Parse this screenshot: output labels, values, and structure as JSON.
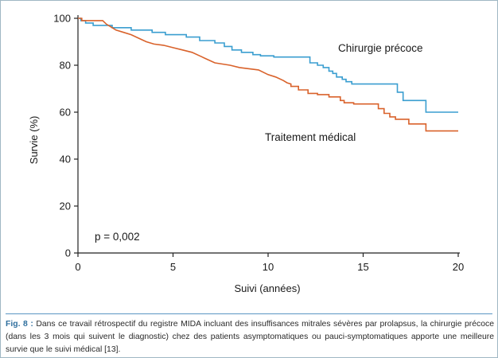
{
  "chart_data": {
    "type": "line",
    "title": "",
    "xlabel": "Suivi (années)",
    "ylabel": "Survie (%)",
    "xlim": [
      0,
      20
    ],
    "ylim": [
      0,
      100
    ],
    "xticks": [
      0,
      5,
      10,
      15,
      20
    ],
    "yticks": [
      0,
      20,
      40,
      60,
      80,
      100
    ],
    "grid": false,
    "annotation": "p = 0,002",
    "series": [
      {
        "name": "Chirurgie précoce",
        "color": "#3a9ed0",
        "x": [
          0,
          0.15,
          0.15,
          0.4,
          0.4,
          0.8,
          0.8,
          1.8,
          1.8,
          2.8,
          2.8,
          3.9,
          3.9,
          4.6,
          4.6,
          5.7,
          5.7,
          6.4,
          6.4,
          7.2,
          7.2,
          7.7,
          7.7,
          8.1,
          8.1,
          8.6,
          8.6,
          9.2,
          9.2,
          9.6,
          9.6,
          10.3,
          10.3,
          12.2,
          12.2,
          12.6,
          12.6,
          12.9,
          12.9,
          13.2,
          13.2,
          13.4,
          13.4,
          13.6,
          13.6,
          13.9,
          13.9,
          14.1,
          14.1,
          14.4,
          14.4,
          14.6,
          14.6,
          16.8,
          16.8,
          17.1,
          17.1,
          17.9,
          17.9,
          18.3,
          18.3,
          20.0
        ],
        "y": [
          100,
          100,
          99,
          99,
          98,
          98,
          97,
          97,
          96,
          96,
          95,
          95,
          94,
          94,
          93,
          93,
          92,
          92,
          90.5,
          90.5,
          89.5,
          89.5,
          88,
          88,
          86.5,
          86.5,
          85.5,
          85.5,
          84.5,
          84.5,
          84,
          84,
          83.5,
          83.5,
          81,
          81,
          80,
          80,
          79,
          79,
          77.5,
          77.5,
          76.5,
          76.5,
          75,
          75,
          74,
          74,
          73,
          73,
          72,
          72,
          72,
          72,
          68.5,
          68.5,
          65,
          65,
          65,
          65,
          60,
          60
        ]
      },
      {
        "name": "Traitement médical",
        "color": "#d9622b",
        "x": [
          0,
          0.2,
          0.2,
          1.3,
          1.5,
          1.7,
          2.0,
          2.4,
          2.8,
          3.2,
          3.6,
          4.0,
          4.5,
          5.0,
          5.5,
          6.0,
          6.4,
          6.8,
          7.2,
          7.6,
          8.0,
          8.5,
          9.0,
          9.5,
          10.0,
          10.4,
          10.8,
          11.0,
          11.2,
          11.2,
          11.6,
          11.6,
          12.1,
          12.1,
          12.6,
          12.6,
          13.2,
          13.2,
          13.8,
          13.8,
          14.0,
          14.0,
          14.5,
          14.5,
          15.0,
          15.0,
          15.8,
          15.8,
          16.1,
          16.1,
          16.4,
          16.4,
          16.7,
          16.7,
          17.4,
          17.4,
          18.3,
          18.3,
          20.0
        ],
        "y": [
          100,
          100,
          99,
          99,
          97.5,
          96.5,
          95,
          94,
          93,
          91.5,
          90,
          89,
          88.5,
          87.5,
          86.5,
          85.5,
          84,
          82.5,
          81,
          80.5,
          80,
          79,
          78.5,
          78,
          76,
          75,
          73.5,
          72.5,
          72,
          71,
          71,
          69.5,
          69.5,
          68,
          68,
          67.5,
          67.5,
          66.5,
          66.5,
          65,
          65,
          64,
          64,
          63.5,
          63.5,
          63.5,
          63.5,
          61.5,
          61.5,
          59.5,
          59.5,
          58,
          58,
          57,
          57,
          55,
          55,
          52,
          52
        ]
      }
    ],
    "labels": {
      "chirurgie": "Chirurgie précoce",
      "traitement": "Traitement médical"
    }
  },
  "caption": {
    "label": "Fig. 8 :",
    "text": " Dans ce travail rétrospectif du registre MIDA incluant des insuffisances mitrales sévères par prolapsus, la chirurgie précoce (dans les 3 mois qui suivent le diagnostic) chez des patients asymptomatiques ou pauci-symptomatiques apporte une meilleure survie que le suivi médical [13]."
  }
}
